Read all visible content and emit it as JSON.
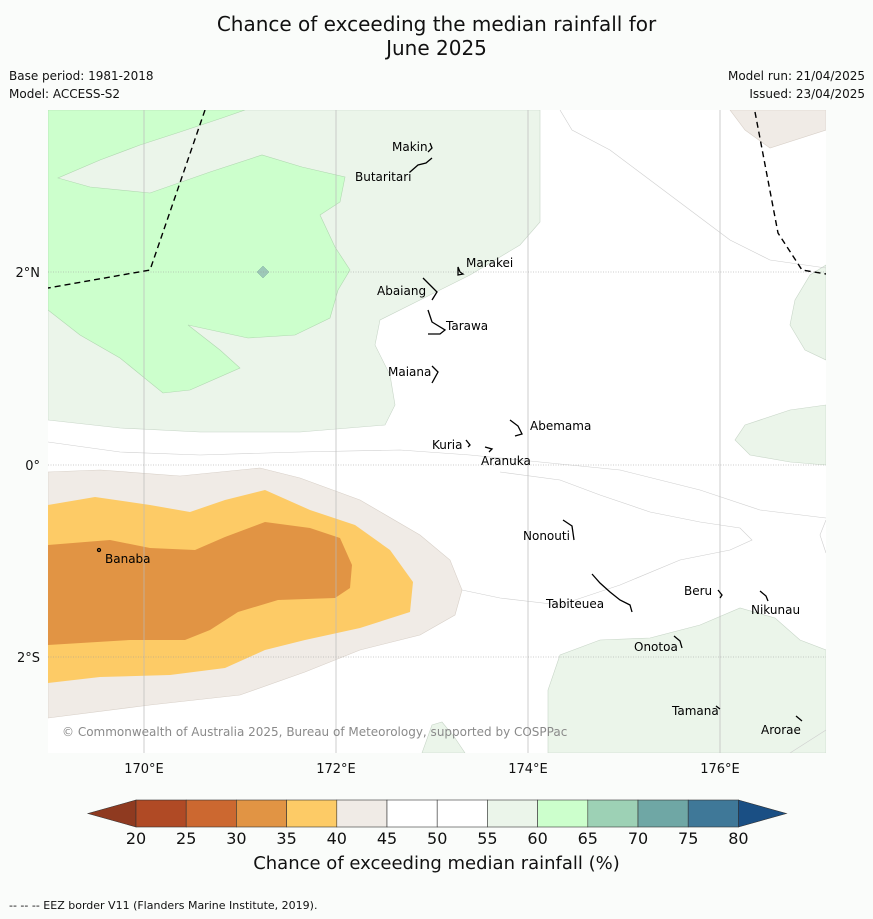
{
  "title_line1": "Chance of exceeding the median rainfall for",
  "title_line2": "June 2025",
  "base_period": "Base period: 1981-2018",
  "model": "Model: ACCESS-S2",
  "model_run": "Model run: 21/04/2025",
  "issued": "Issued: 23/04/2025",
  "lon_labels": [
    "170°E",
    "172°E",
    "174°E",
    "176°E"
  ],
  "lat_labels": [
    "2°N",
    "0°",
    "2°S"
  ],
  "copyright": "© Commonwealth of Australia 2025, Bureau of Meteorology, supported by COSPPac",
  "islands": [
    "Makin",
    "Butaritari",
    "Marakei",
    "Abaiang",
    "Tarawa",
    "Maiana",
    "Abemama",
    "Kuria",
    "Aranuka",
    "Nonouti",
    "Banaba",
    "Tabiteuea",
    "Beru",
    "Nikunau",
    "Onotoa",
    "Tamana",
    "Arorae"
  ],
  "colorbar": {
    "ticks": [
      "20",
      "25",
      "30",
      "35",
      "40",
      "45",
      "50",
      "55",
      "60",
      "65",
      "70",
      "75",
      "80"
    ],
    "colors": [
      "#b04a25",
      "#cc6830",
      "#e19444",
      "#fdcb66",
      "#f0ebe6",
      "#ffffff",
      "#ffffff",
      "#ebf5ea",
      "#ccffcc",
      "#9dd1b5",
      "#6fa7a5",
      "#3f7898"
    ],
    "under_color": "#8f3a20",
    "over_color": "#1a4f84",
    "label": "Chance of exceeding median rainfall (%)"
  },
  "footer": "--  --  -- EEZ border V11 (Flanders Marine Institute, 2019)."
}
